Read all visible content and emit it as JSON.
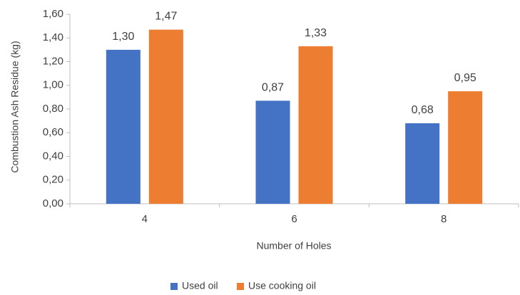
{
  "chart_data": {
    "type": "bar",
    "categories": [
      "4",
      "6",
      "8"
    ],
    "series": [
      {
        "name": "Used oil",
        "values": [
          1.3,
          0.87,
          0.68
        ],
        "value_labels": [
          "1,30",
          "0,87",
          "0,68"
        ],
        "color": "#4472c4"
      },
      {
        "name": "Use cooking oil",
        "values": [
          1.47,
          1.33,
          0.95
        ],
        "value_labels": [
          "1,47",
          "1,33",
          "0,95"
        ],
        "color": "#ed7d31"
      }
    ],
    "xlabel": "Number of Holes",
    "ylabel": "Combustion Ash Residue (kg)",
    "ylim": [
      0,
      1.6
    ],
    "yticks": [
      0,
      0.2,
      0.4,
      0.6,
      0.8,
      1.0,
      1.2,
      1.4,
      1.6
    ],
    "ytick_labels": [
      "0,00",
      "0,20",
      "0,40",
      "0,60",
      "0,80",
      "1,00",
      "1,20",
      "1,40",
      "1,60"
    ],
    "grid": false,
    "legend_position": "bottom"
  }
}
